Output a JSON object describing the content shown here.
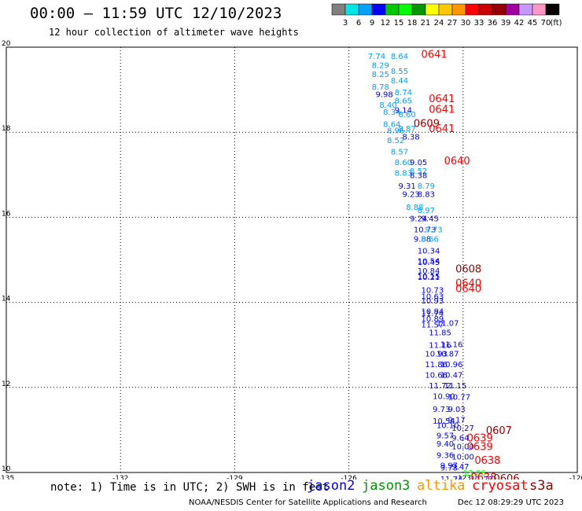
{
  "header": {
    "title": "00:00 – 11:59 UTC 12/10/2023",
    "subtitle": "12 hour collection of altimeter wave heights"
  },
  "colorbar": {
    "unit": "(ft)",
    "ticks": [
      "3",
      "6",
      "9",
      "12",
      "15",
      "18",
      "21",
      "24",
      "27",
      "30",
      "33",
      "36",
      "39",
      "42",
      "45",
      "70"
    ],
    "colors": [
      "#808080",
      "#00e5e5",
      "#00a0ff",
      "#0000ff",
      "#00c800",
      "#00ff00",
      "#009600",
      "#ffff00",
      "#ffc800",
      "#ff9600",
      "#ff0000",
      "#c80000",
      "#960000",
      "#a000a0",
      "#c896ff",
      "#ff96c8",
      "#000000"
    ]
  },
  "footer": {
    "note": "note: 1) Time is in UTC; 2) SWH is in feet",
    "credit": "NOAA/NESDIS Center for Satellite Applications and Research",
    "timestamp": "Dec 12 08:29:29 UTC 2023"
  },
  "legend": [
    {
      "name": "jason2",
      "color": "#0000ff"
    },
    {
      "name": "jason3",
      "color": "#009600"
    },
    {
      "name": "altika",
      "color": "#ff9600"
    },
    {
      "name": "cryosat",
      "color": "#ff0000"
    },
    {
      "name": "s3a",
      "color": "#960000"
    }
  ],
  "chart_data": {
    "type": "scatter",
    "xlim": [
      -135,
      -120
    ],
    "ylim": [
      10,
      20
    ],
    "xticks": [
      "-135",
      "-132",
      "-129",
      "-126",
      "-123",
      "-120"
    ],
    "yticks": [
      "10",
      "12",
      "14",
      "16",
      "18",
      "20"
    ],
    "grid": true,
    "points": [
      {
        "lon": -125.5,
        "lat": 19.8,
        "label": "7.74",
        "color": "#00a0ff"
      },
      {
        "lon": -124.9,
        "lat": 19.8,
        "label": "8.64",
        "color": "#00a0ff"
      },
      {
        "lon": -125.4,
        "lat": 19.58,
        "label": "8.29",
        "color": "#00a0ff"
      },
      {
        "lon": -124.9,
        "lat": 19.45,
        "label": "8.55",
        "color": "#00a0ff"
      },
      {
        "lon": -125.4,
        "lat": 19.37,
        "label": "8.25",
        "color": "#00a0ff"
      },
      {
        "lon": -124.9,
        "lat": 19.22,
        "label": "8.44",
        "color": "#00a0ff"
      },
      {
        "lon": -125.4,
        "lat": 19.08,
        "label": "8.78",
        "color": "#00a0ff"
      },
      {
        "lon": -124.8,
        "lat": 18.95,
        "label": "8.74",
        "color": "#00a0ff"
      },
      {
        "lon": -125.3,
        "lat": 18.9,
        "label": "9.98",
        "color": "#0000ff"
      },
      {
        "lon": -124.8,
        "lat": 18.75,
        "label": "8.65",
        "color": "#00a0ff"
      },
      {
        "lon": -125.2,
        "lat": 18.65,
        "label": "8.40",
        "color": "#00a0ff"
      },
      {
        "lon": -124.8,
        "lat": 18.53,
        "label": "9.14",
        "color": "#0000ff"
      },
      {
        "lon": -125.1,
        "lat": 18.48,
        "label": "8.34",
        "color": "#00a0ff"
      },
      {
        "lon": -124.7,
        "lat": 18.43,
        "label": "8.60",
        "color": "#00a0ff"
      },
      {
        "lon": -125.1,
        "lat": 18.2,
        "label": "8.64",
        "color": "#00a0ff"
      },
      {
        "lon": -124.7,
        "lat": 18.1,
        "label": "8.87",
        "color": "#00a0ff"
      },
      {
        "lon": -125.0,
        "lat": 18.05,
        "label": "8.96",
        "color": "#00a0ff"
      },
      {
        "lon": -124.6,
        "lat": 17.9,
        "label": "8.38",
        "color": "#0000ff"
      },
      {
        "lon": -125.0,
        "lat": 17.82,
        "label": "8.52",
        "color": "#00a0ff"
      },
      {
        "lon": -124.9,
        "lat": 17.55,
        "label": "8.57",
        "color": "#00a0ff"
      },
      {
        "lon": -124.8,
        "lat": 17.3,
        "label": "8.60",
        "color": "#00a0ff"
      },
      {
        "lon": -124.4,
        "lat": 17.3,
        "label": "9.05",
        "color": "#0000ff"
      },
      {
        "lon": -124.8,
        "lat": 17.05,
        "label": "8.83",
        "color": "#00a0ff"
      },
      {
        "lon": -124.4,
        "lat": 17.1,
        "label": "8.52",
        "color": "#00a0ff"
      },
      {
        "lon": -124.4,
        "lat": 17.0,
        "label": "8.38",
        "color": "#0000ff"
      },
      {
        "lon": -124.7,
        "lat": 16.75,
        "label": "9.31",
        "color": "#0000ff"
      },
      {
        "lon": -124.2,
        "lat": 16.75,
        "label": "8.79",
        "color": "#00a0ff"
      },
      {
        "lon": -124.6,
        "lat": 16.55,
        "label": "9.23",
        "color": "#0000ff"
      },
      {
        "lon": -124.2,
        "lat": 16.55,
        "label": "8.83",
        "color": "#0000ff"
      },
      {
        "lon": -124.5,
        "lat": 16.25,
        "label": "8.88",
        "color": "#00a0ff"
      },
      {
        "lon": -124.2,
        "lat": 16.17,
        "label": "8.97",
        "color": "#00a0ff"
      },
      {
        "lon": -124.4,
        "lat": 15.98,
        "label": "9.24",
        "color": "#0000ff"
      },
      {
        "lon": -124.1,
        "lat": 15.98,
        "label": "9.45",
        "color": "#0000ff"
      },
      {
        "lon": -124.3,
        "lat": 15.72,
        "label": "10.73",
        "color": "#0000ff"
      },
      {
        "lon": -124.0,
        "lat": 15.72,
        "label": "9.73",
        "color": "#00a0ff"
      },
      {
        "lon": -124.3,
        "lat": 15.5,
        "label": "9.88",
        "color": "#0000ff"
      },
      {
        "lon": -124.1,
        "lat": 15.5,
        "label": "8.66",
        "color": "#00a0ff"
      },
      {
        "lon": -124.2,
        "lat": 15.22,
        "label": "10.34",
        "color": "#0000ff"
      },
      {
        "lon": -124.2,
        "lat": 14.98,
        "label": "10.54",
        "color": "#0000ff"
      },
      {
        "lon": -124.2,
        "lat": 14.95,
        "label": "10.45",
        "color": "#0000ff"
      },
      {
        "lon": -124.2,
        "lat": 14.75,
        "label": "10.84",
        "color": "#0000ff"
      },
      {
        "lon": -124.2,
        "lat": 14.62,
        "label": "10.15",
        "color": "#0000ff"
      },
      {
        "lon": -124.2,
        "lat": 14.6,
        "label": "10.21",
        "color": "#0000ff"
      },
      {
        "lon": -124.1,
        "lat": 14.3,
        "label": "10.73",
        "color": "#0000ff"
      },
      {
        "lon": -124.1,
        "lat": 14.15,
        "label": "10.63",
        "color": "#0000ff"
      },
      {
        "lon": -124.1,
        "lat": 14.05,
        "label": "10.93",
        "color": "#0000ff"
      },
      {
        "lon": -124.1,
        "lat": 13.8,
        "label": "10.84",
        "color": "#0000ff"
      },
      {
        "lon": -124.1,
        "lat": 13.75,
        "label": "11.74",
        "color": "#0000ff"
      },
      {
        "lon": -124.1,
        "lat": 13.62,
        "label": "10.89",
        "color": "#0000ff"
      },
      {
        "lon": -124.1,
        "lat": 13.48,
        "label": "11.57",
        "color": "#0000ff"
      },
      {
        "lon": -123.7,
        "lat": 13.52,
        "label": "11.07",
        "color": "#0000ff"
      },
      {
        "lon": -123.9,
        "lat": 13.3,
        "label": "11.85",
        "color": "#0000ff"
      },
      {
        "lon": -123.9,
        "lat": 13.0,
        "label": "11.16",
        "color": "#0000ff"
      },
      {
        "lon": -123.6,
        "lat": 13.02,
        "label": "11.16",
        "color": "#0000ff"
      },
      {
        "lon": -124.0,
        "lat": 12.8,
        "label": "10.93",
        "color": "#0000ff"
      },
      {
        "lon": -123.7,
        "lat": 12.8,
        "label": "10.87",
        "color": "#0000ff"
      },
      {
        "lon": -124.0,
        "lat": 12.55,
        "label": "11.86",
        "color": "#0000ff"
      },
      {
        "lon": -123.6,
        "lat": 12.55,
        "label": "10.96",
        "color": "#0000ff"
      },
      {
        "lon": -124.0,
        "lat": 12.3,
        "label": "10.66",
        "color": "#0000ff"
      },
      {
        "lon": -123.6,
        "lat": 12.3,
        "label": "10.47",
        "color": "#0000ff"
      },
      {
        "lon": -123.9,
        "lat": 12.05,
        "label": "11.72",
        "color": "#0000ff"
      },
      {
        "lon": -123.5,
        "lat": 12.05,
        "label": "11.15",
        "color": "#0000ff"
      },
      {
        "lon": -123.8,
        "lat": 11.8,
        "label": "10.90",
        "color": "#0000ff"
      },
      {
        "lon": -123.4,
        "lat": 11.78,
        "label": "10.77",
        "color": "#0000ff"
      },
      {
        "lon": -123.8,
        "lat": 11.5,
        "label": "9.73",
        "color": "#0000ff"
      },
      {
        "lon": -123.4,
        "lat": 11.5,
        "label": "9.03",
        "color": "#0000ff"
      },
      {
        "lon": -123.8,
        "lat": 11.22,
        "label": "10.54",
        "color": "#0000ff"
      },
      {
        "lon": -123.4,
        "lat": 11.25,
        "label": "9.17",
        "color": "#0000ff"
      },
      {
        "lon": -123.7,
        "lat": 11.12,
        "label": "10.10",
        "color": "#0000ff"
      },
      {
        "lon": -123.3,
        "lat": 11.05,
        "label": "10.27",
        "color": "#0000ff"
      },
      {
        "lon": -123.7,
        "lat": 10.88,
        "label": "9.57",
        "color": "#0000ff"
      },
      {
        "lon": -123.3,
        "lat": 10.82,
        "label": "9.64",
        "color": "#0000ff"
      },
      {
        "lon": -123.7,
        "lat": 10.68,
        "label": "9.40",
        "color": "#0000ff"
      },
      {
        "lon": -123.3,
        "lat": 10.62,
        "label": "10.00",
        "color": "#0000ff"
      },
      {
        "lon": -123.7,
        "lat": 10.42,
        "label": "9.36",
        "color": "#0000ff"
      },
      {
        "lon": -123.3,
        "lat": 10.38,
        "label": "10.00",
        "color": "#0000ff"
      },
      {
        "lon": -123.6,
        "lat": 10.18,
        "label": "9.97",
        "color": "#0000ff"
      },
      {
        "lon": -123.3,
        "lat": 10.15,
        "label": "9.47",
        "color": "#0000ff"
      },
      {
        "lon": -123.6,
        "lat": 10.12,
        "label": "9.73",
        "color": "#0000ff"
      },
      {
        "lon": -123.0,
        "lat": 10.0,
        "label": "13.06",
        "color": "#00ff00"
      },
      {
        "lon": -123.6,
        "lat": 9.85,
        "label": "11.74",
        "color": "#0000ff"
      },
      {
        "lon": -122.8,
        "lat": 9.85,
        "label": "11.23",
        "color": "#0000ff"
      },
      {
        "lon": -124.1,
        "lat": 19.82,
        "label": "0641",
        "color": "#ff0000"
      },
      {
        "lon": -123.9,
        "lat": 18.78,
        "label": "0641",
        "color": "#ff0000"
      },
      {
        "lon": -123.9,
        "lat": 18.53,
        "label": "0641",
        "color": "#ff0000"
      },
      {
        "lon": -124.3,
        "lat": 18.2,
        "label": "0609",
        "color": "#960000"
      },
      {
        "lon": -123.9,
        "lat": 18.08,
        "label": "0641",
        "color": "#ff0000"
      },
      {
        "lon": -123.5,
        "lat": 17.32,
        "label": "0640",
        "color": "#ff0000"
      },
      {
        "lon": -123.2,
        "lat": 14.78,
        "label": "0608",
        "color": "#960000"
      },
      {
        "lon": -123.2,
        "lat": 14.45,
        "label": "0640",
        "color": "#ff0000"
      },
      {
        "lon": -123.2,
        "lat": 14.32,
        "label": "0640",
        "color": "#ff0000"
      },
      {
        "lon": -122.4,
        "lat": 10.98,
        "label": "0607",
        "color": "#960000"
      },
      {
        "lon": -122.9,
        "lat": 10.8,
        "label": "0639",
        "color": "#ff0000"
      },
      {
        "lon": -122.9,
        "lat": 10.6,
        "label": "0639",
        "color": "#ff0000"
      },
      {
        "lon": -122.7,
        "lat": 10.28,
        "label": "0638",
        "color": "#ff0000"
      },
      {
        "lon": -122.8,
        "lat": 9.88,
        "label": "0638",
        "color": "#ff0000"
      },
      {
        "lon": -122.2,
        "lat": 9.85,
        "label": "0606",
        "color": "#960000"
      }
    ]
  }
}
